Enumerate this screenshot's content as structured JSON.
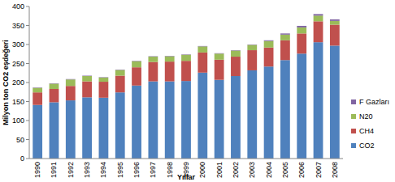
{
  "chart_data": {
    "type": "bar",
    "stacked": true,
    "grid": false,
    "legend": "right",
    "y_label": "Milyon ton CO2 eşdeğeri",
    "x_label": "Yıllar",
    "categories": [
      "1990",
      "1991",
      "1992",
      "1993",
      "1994",
      "1995",
      "1996",
      "1997",
      "1998",
      "1999",
      "2000",
      "2001",
      "2002",
      "2003",
      "2004",
      "2005",
      "2006",
      "2007",
      "2008"
    ],
    "ylim": [
      0,
      400
    ],
    "yticks": [
      0,
      50,
      100,
      150,
      200,
      250,
      300,
      350,
      400
    ],
    "series": [
      {
        "name": "CO2",
        "color": "#4f81bd",
        "values": [
          141,
          148,
          153,
          161,
          160,
          174,
          192,
          203,
          203,
          204,
          226,
          207,
          217,
          232,
          242,
          259,
          276,
          306,
          297
        ]
      },
      {
        "name": "CH4",
        "color": "#c0504d",
        "values": [
          33,
          35,
          38,
          42,
          42,
          44,
          48,
          51,
          52,
          53,
          53,
          53,
          51,
          53,
          50,
          52,
          53,
          55,
          55
        ]
      },
      {
        "name": "N20",
        "color": "#9bbb59",
        "values": [
          12,
          14,
          17,
          14,
          11,
          15,
          16,
          14,
          14,
          16,
          16,
          16,
          16,
          14,
          17,
          15,
          16,
          15,
          10
        ]
      },
      {
        "name": "F Gazları",
        "color": "#8064a2",
        "values": [
          1,
          1,
          1,
          1,
          1,
          1,
          1,
          1,
          1,
          1,
          1,
          1,
          1,
          1,
          2,
          3,
          4,
          4,
          4
        ]
      }
    ]
  }
}
